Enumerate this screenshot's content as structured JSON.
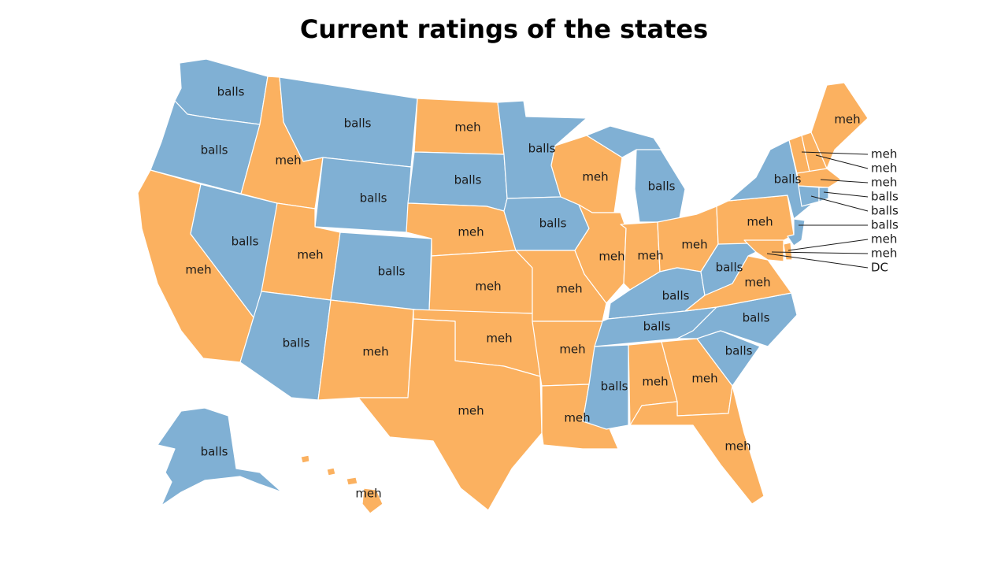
{
  "title": "Current ratings of the states",
  "colors": {
    "balls": "#80b0d4",
    "meh": "#fbb160",
    "border": "#ffffff"
  },
  "states": [
    {
      "id": "WA",
      "rating": "balls",
      "label": "balls"
    },
    {
      "id": "OR",
      "rating": "balls",
      "label": "balls"
    },
    {
      "id": "CA",
      "rating": "meh",
      "label": "meh"
    },
    {
      "id": "NV",
      "rating": "balls",
      "label": "balls"
    },
    {
      "id": "ID",
      "rating": "meh",
      "label": "meh"
    },
    {
      "id": "MT",
      "rating": "balls",
      "label": "balls"
    },
    {
      "id": "WY",
      "rating": "balls",
      "label": "balls"
    },
    {
      "id": "UT",
      "rating": "meh",
      "label": "meh"
    },
    {
      "id": "AZ",
      "rating": "balls",
      "label": "balls"
    },
    {
      "id": "CO",
      "rating": "balls",
      "label": "balls"
    },
    {
      "id": "NM",
      "rating": "meh",
      "label": "meh"
    },
    {
      "id": "ND",
      "rating": "meh",
      "label": "meh"
    },
    {
      "id": "SD",
      "rating": "balls",
      "label": "balls"
    },
    {
      "id": "NE",
      "rating": "meh",
      "label": "meh"
    },
    {
      "id": "KS",
      "rating": "meh",
      "label": "meh"
    },
    {
      "id": "OK",
      "rating": "meh",
      "label": "meh"
    },
    {
      "id": "TX",
      "rating": "meh",
      "label": "meh"
    },
    {
      "id": "MN",
      "rating": "balls",
      "label": "balls"
    },
    {
      "id": "IA",
      "rating": "balls",
      "label": "balls"
    },
    {
      "id": "MO",
      "rating": "meh",
      "label": "meh"
    },
    {
      "id": "AR",
      "rating": "meh",
      "label": "meh"
    },
    {
      "id": "LA",
      "rating": "meh",
      "label": "meh"
    },
    {
      "id": "WI",
      "rating": "meh",
      "label": "meh"
    },
    {
      "id": "IL",
      "rating": "meh",
      "label": "meh"
    },
    {
      "id": "MI",
      "rating": "balls",
      "label": "balls"
    },
    {
      "id": "IN",
      "rating": "meh",
      "label": "meh"
    },
    {
      "id": "OH",
      "rating": "meh",
      "label": "meh"
    },
    {
      "id": "KY",
      "rating": "balls",
      "label": "balls"
    },
    {
      "id": "TN",
      "rating": "balls",
      "label": "balls"
    },
    {
      "id": "MS",
      "rating": "balls",
      "label": "balls"
    },
    {
      "id": "AL",
      "rating": "meh",
      "label": "meh"
    },
    {
      "id": "GA",
      "rating": "meh",
      "label": "meh"
    },
    {
      "id": "FL",
      "rating": "meh",
      "label": "meh"
    },
    {
      "id": "SC",
      "rating": "balls",
      "label": "balls"
    },
    {
      "id": "NC",
      "rating": "balls",
      "label": "balls"
    },
    {
      "id": "VA",
      "rating": "meh",
      "label": "meh"
    },
    {
      "id": "WV",
      "rating": "balls",
      "label": "balls"
    },
    {
      "id": "PA",
      "rating": "meh",
      "label": "meh"
    },
    {
      "id": "NY",
      "rating": "balls",
      "label": "balls"
    },
    {
      "id": "ME",
      "rating": "meh",
      "label": "meh"
    },
    {
      "id": "AK",
      "rating": "balls",
      "label": "balls"
    },
    {
      "id": "HI",
      "rating": "meh",
      "label": "meh"
    }
  ],
  "callouts": [
    {
      "id": "VT",
      "rating": "meh",
      "label": "meh"
    },
    {
      "id": "NH",
      "rating": "meh",
      "label": "meh"
    },
    {
      "id": "MA",
      "rating": "meh",
      "label": "meh"
    },
    {
      "id": "RI",
      "rating": "balls",
      "label": "balls"
    },
    {
      "id": "CT",
      "rating": "balls",
      "label": "balls"
    },
    {
      "id": "NJ",
      "rating": "balls",
      "label": "balls"
    },
    {
      "id": "DE",
      "rating": "meh",
      "label": "meh"
    },
    {
      "id": "MD",
      "rating": "meh",
      "label": "meh"
    },
    {
      "id": "DC",
      "rating": "",
      "label": "DC"
    }
  ]
}
